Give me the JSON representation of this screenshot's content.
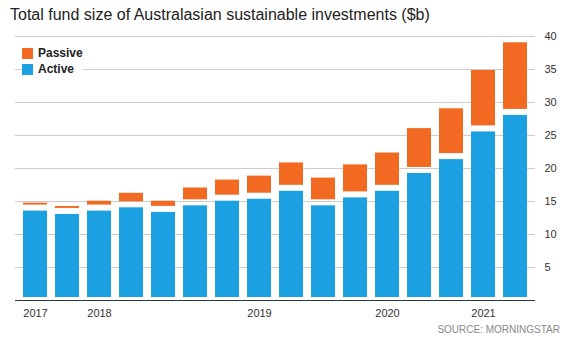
{
  "chart_data": {
    "type": "bar",
    "title": "Total fund size of Australasian sustainable investments ($b)",
    "source": "SOURCE: MORNINGSTAR",
    "categories": [
      "2017",
      null,
      "2018",
      null,
      null,
      null,
      null,
      "2019",
      null,
      null,
      null,
      "2020",
      null,
      null,
      "2021",
      null
    ],
    "series": [
      {
        "name": "Active",
        "color": "#1ba0e1",
        "values": [
          14,
          13.5,
          14,
          14.5,
          13.8,
          14.8,
          15.5,
          15.8,
          17,
          14.8,
          16,
          17,
          19.7,
          21.8,
          26,
          28.5
        ]
      },
      {
        "name": "Passive",
        "color": "#f26a22",
        "values": [
          1.2,
          1.2,
          1.5,
          2.2,
          1.7,
          2.7,
          3.2,
          3.5,
          4.3,
          4.2,
          5,
          5.8,
          6.8,
          7.7,
          9.3,
          11
        ]
      }
    ],
    "stacked": true,
    "ylim": [
      0,
      40
    ],
    "yticks": [
      5,
      10,
      15,
      20,
      25,
      30,
      35,
      40
    ],
    "grid": true,
    "legend": "top-left"
  }
}
